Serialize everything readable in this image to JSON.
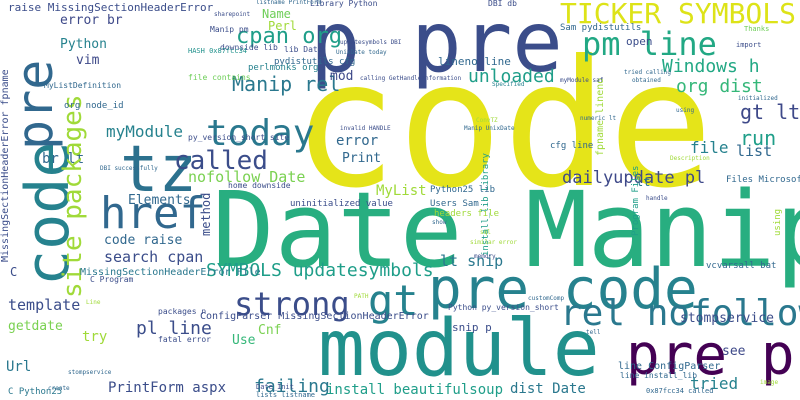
{
  "palette": {
    "purple_dark": "#440154",
    "indigo": "#3b4d8a",
    "blue": "#31688e",
    "teal": "#21908d",
    "green": "#35b779",
    "lime": "#7ad151",
    "yellow": "#e5e419"
  },
  "words": [
    {
      "text": "code",
      "color": "#e5e419"
    },
    {
      "text": "Date Manip",
      "color": "#28ae80"
    },
    {
      "text": "module",
      "color": "#21918c"
    },
    {
      "text": "p pre",
      "color": "#3b4d8a"
    },
    {
      "text": "pre code",
      "color": "#26828e"
    },
    {
      "text": "pre p",
      "color": "#440154"
    },
    {
      "text": "tz",
      "color": "#2c718e"
    },
    {
      "text": "href",
      "color": "#31688e"
    },
    {
      "text": "today",
      "color": "#2a788e"
    },
    {
      "text": "called",
      "color": "#3b4d8a"
    },
    {
      "text": "strong",
      "color": "#3b4d8a"
    },
    {
      "text": "gt",
      "color": "#26828e"
    },
    {
      "text": "rel nofollow",
      "color": "#2a788e"
    },
    {
      "text": "pm line",
      "color": "#22a884"
    },
    {
      "text": "TICKER SYMBOLS",
      "color": "#dde318"
    },
    {
      "text": "cpan org",
      "color": "#1f9e89"
    },
    {
      "text": "Manip rel",
      "color": "#2a788e"
    },
    {
      "text": "myModule",
      "color": "#26828e"
    },
    {
      "text": "nofollow Date",
      "color": "#7ad151"
    },
    {
      "text": "unloaded",
      "color": "#1f9e89"
    },
    {
      "text": "Windows h",
      "color": "#22a884"
    },
    {
      "text": "org dist",
      "color": "#35b779"
    },
    {
      "text": "gt lt",
      "color": "#3e4989"
    },
    {
      "text": "run",
      "color": "#1f9e89"
    },
    {
      "text": "file",
      "color": "#26828e"
    },
    {
      "text": "list",
      "color": "#31688e"
    },
    {
      "text": "dailyupdate pl",
      "color": "#3e4989"
    },
    {
      "text": "SYMBOLS updatesymbols",
      "color": "#1f9e89"
    },
    {
      "text": "search cpan",
      "color": "#3b4d8a"
    },
    {
      "text": "code raise",
      "color": "#31688e"
    },
    {
      "text": "Elements",
      "color": "#31688e"
    },
    {
      "text": "pl line",
      "color": "#3b4d8a"
    },
    {
      "text": "lt snip",
      "color": "#2a788e"
    },
    {
      "text": "stompservice",
      "color": "#3b4d8a"
    },
    {
      "text": "PrintForm aspx",
      "color": "#3b4d8a"
    },
    {
      "text": "failing",
      "color": "#2a788e"
    },
    {
      "text": "install beautifulsoup",
      "color": "#1f9e89"
    },
    {
      "text": "dist Date",
      "color": "#2a788e"
    },
    {
      "text": "tried",
      "color": "#26828e"
    },
    {
      "text": "see",
      "color": "#3e4989"
    },
    {
      "text": "template",
      "color": "#3b4d8a"
    },
    {
      "text": "getdate",
      "color": "#7ad151"
    },
    {
      "text": "Url",
      "color": "#2a788e"
    },
    {
      "text": "try",
      "color": "#a0da39"
    },
    {
      "text": "Use",
      "color": "#35b779"
    },
    {
      "text": "Cnf",
      "color": "#7ad151"
    },
    {
      "text": "Print",
      "color": "#31688e"
    },
    {
      "text": "error",
      "color": "#31688e"
    },
    {
      "text": "MyList",
      "color": "#a0da39"
    },
    {
      "text": "br lt",
      "color": "#31688e"
    },
    {
      "text": "Perl",
      "color": "#a0da39"
    },
    {
      "text": "Name",
      "color": "#6ece58"
    },
    {
      "text": "mod",
      "color": "#3e4989"
    },
    {
      "text": "vim",
      "color": "#3e4989"
    },
    {
      "text": "Python",
      "color": "#26828e"
    },
    {
      "text": "error br",
      "color": "#3e4989"
    },
    {
      "text": "raise MissingSectionHeaderError",
      "color": "#3b4d8a"
    },
    {
      "text": "C",
      "color": "#3b4d8a"
    },
    {
      "text": "lineno line",
      "color": "#31688e"
    },
    {
      "text": "open",
      "color": "#3b4d8a"
    },
    {
      "text": "lt",
      "color": "#2a788e"
    },
    {
      "text": "snip p",
      "color": "#3b4d8a"
    },
    {
      "text": "import",
      "color": "#3b4d8a"
    },
    {
      "text": "Thanks",
      "color": "#6ece58"
    },
    {
      "text": "method",
      "color": "#3b4d8a"
    },
    {
      "text": "code",
      "color": "#26828e"
    },
    {
      "text": "pre",
      "color": "#31688e"
    },
    {
      "text": "site packages",
      "color": "#a0da39"
    },
    {
      "text": "MissingSectionHeaderError fpname",
      "color": "#3b4d8a"
    },
    {
      "text": "ConfigParser MissingSectionHeaderError",
      "color": "#3b4d8a"
    },
    {
      "text": "MissingSectionHeaderError File",
      "color": "#2a788e"
    },
    {
      "text": "line ConfigParser",
      "color": "#31688e"
    },
    {
      "text": "Python25 lib",
      "color": "#31688e"
    },
    {
      "text": "Files Microsoft",
      "color": "#31688e"
    },
    {
      "text": "uninitialized value",
      "color": "#3b4d8a"
    },
    {
      "text": "Users Sam",
      "color": "#31688e"
    },
    {
      "text": "headers file",
      "color": "#a0da39"
    },
    {
      "text": "cfg line",
      "color": "#31688e"
    },
    {
      "text": "install_lib Library",
      "color": "#1f9e89"
    },
    {
      "text": "Program Files",
      "color": "#1f9e89"
    },
    {
      "text": "fpname lineno",
      "color": "#a0da39"
    },
    {
      "text": "vcvarsall bat",
      "color": "#31688e"
    },
    {
      "text": "Sam pydistutils",
      "color": "#31688e"
    },
    {
      "text": "pydistutils cfg",
      "color": "#31688e"
    },
    {
      "text": "perlmonks org",
      "color": "#26828e"
    },
    {
      "text": "org node_id",
      "color": "#31688e"
    },
    {
      "text": "MyListDefinition",
      "color": "#31688e"
    },
    {
      "text": "C Program",
      "color": "#3b4d8a"
    },
    {
      "text": "C Python25",
      "color": "#2a788e"
    },
    {
      "text": "packages n",
      "color": "#3b4d8a"
    },
    {
      "text": "fatal error",
      "color": "#3b4d8a"
    },
    {
      "text": "Python py_version_short",
      "color": "#3b4d8a"
    },
    {
      "text": "py_version_short site",
      "color": "#3b4d8a"
    },
    {
      "text": "home downside",
      "color": "#3b4d8a"
    },
    {
      "text": "downside lib",
      "color": "#3b4d8a"
    },
    {
      "text": "lib Date",
      "color": "#3b4d8a"
    },
    {
      "text": "Library Python",
      "color": "#3b4d8a"
    },
    {
      "text": "Manip pm",
      "color": "#3b4d8a"
    },
    {
      "text": "file contains",
      "color": "#6ece58"
    },
    {
      "text": "DBI db",
      "color": "#3b4d8a"
    },
    {
      "text": "HASH 0x87fcc34",
      "color": "#21918c"
    },
    {
      "text": "Date_Init",
      "color": "#3b4d8a"
    },
    {
      "text": "lists listname",
      "color": "#31688e"
    },
    {
      "text": "myModule saf",
      "color": "#3b4d8a"
    },
    {
      "text": "tried calling",
      "color": "#31688e"
    },
    {
      "text": "calling GetHandleInformation",
      "color": "#3b4d8a"
    },
    {
      "text": "UnixDate today",
      "color": "#31688e"
    },
    {
      "text": "similar error",
      "color": "#a0da39"
    },
    {
      "text": "invalid HANDLE",
      "color": "#3b4d8a"
    },
    {
      "text": "DBI successfully",
      "color": "#31688e"
    },
    {
      "text": "listname PrintForm",
      "color": "#31688e"
    },
    {
      "text": "sharepoint",
      "color": "#3b4d8a"
    },
    {
      "text": "PATH",
      "color": "#a0da39"
    },
    {
      "text": "customComp",
      "color": "#31688e"
    },
    {
      "text": "line install_lib",
      "color": "#31688e"
    },
    {
      "text": "0x87fcc34 called",
      "color": "#31688e"
    },
    {
      "text": "Description",
      "color": "#a0da39"
    },
    {
      "text": "initialized",
      "color": "#31688e"
    },
    {
      "text": "obtained",
      "color": "#31688e"
    },
    {
      "text": "using",
      "color": "#31688e"
    },
    {
      "text": "Line",
      "color": "#a0da39"
    },
    {
      "text": "Specified",
      "color": "#a0da39"
    },
    {
      "text": "updatesymbols DBI",
      "color": "#26828e"
    },
    {
      "text": "ConvTZ",
      "color": "#3b4d8a"
    },
    {
      "text": "show",
      "color": "#a0da39"
    },
    {
      "text": "Manip UnixDate",
      "color": "#31688e"
    },
    {
      "text": "stompservice",
      "color": "#31688e"
    },
    {
      "text": "numeric lt",
      "color": "#31688e"
    },
    {
      "text": "handle",
      "color": "#31688e"
    },
    {
      "text": "memory",
      "color": "#3b4d8a"
    },
    {
      "text": "sql",
      "color": "#3b4d8a"
    },
    {
      "text": "tell",
      "color": "#a0da39"
    },
    {
      "text": "image",
      "color": "#31688e"
    },
    {
      "text": "create",
      "color": "#a0da39"
    },
    {
      "text": "server",
      "color": "#31688e"
    }
  ]
}
